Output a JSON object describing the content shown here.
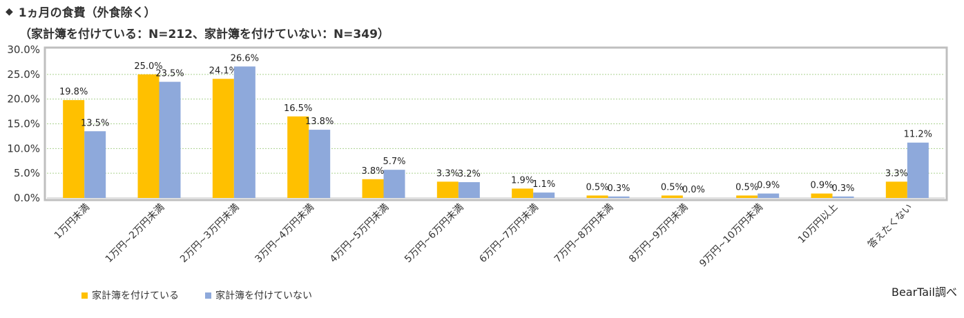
{
  "title": {
    "line1": "1ヵ月の食費（外食除く）",
    "line2": "（家計簿を付けている：N=212、家計簿を付けていない：N=349）",
    "bullet_icon": "diamond-bullet-icon"
  },
  "credit": "BearTail調べ",
  "colors": {
    "series1": "#FFC000",
    "series2": "#8EA9DB",
    "grid": "#A9D18E",
    "frame": "#BFBFBF"
  },
  "chart_data": {
    "type": "bar",
    "categories": [
      "1万円未満",
      "1万円~2万円未満",
      "2万円~3万円未満",
      "3万円~4万円未満",
      "4万円~5万円未満",
      "5万円~6万円未満",
      "6万円~7万円未満",
      "7万円~8万円未満",
      "8万円~9万円未満",
      "9万円~10万円未満",
      "10万円以上",
      "答えたくない"
    ],
    "series": [
      {
        "name": "家計簿を付けている",
        "values": [
          19.8,
          25.0,
          24.1,
          16.5,
          3.8,
          3.3,
          1.9,
          0.5,
          0.5,
          0.5,
          0.9,
          3.3
        ],
        "labels": [
          "19.8%",
          "25.0%",
          "24.1%",
          "16.5%",
          "3.8%",
          "3.3%",
          "1.9%",
          "0.5%",
          "0.5%",
          "0.5%",
          "0.9%",
          "3.3%"
        ]
      },
      {
        "name": "家計簿を付けていない",
        "values": [
          13.5,
          23.5,
          26.6,
          13.8,
          5.7,
          3.2,
          1.1,
          0.3,
          0.0,
          0.9,
          0.3,
          11.2
        ],
        "labels": [
          "13.5%",
          "23.5%",
          "26.6%",
          "13.8%",
          "5.7%",
          "3.2%",
          "1.1%",
          "0.3%",
          "0.0%",
          "0.9%",
          "0.3%",
          "11.2%"
        ]
      }
    ],
    "ylim": [
      0,
      30
    ],
    "yticks": [
      "0.0%",
      "5.0%",
      "10.0%",
      "15.0%",
      "20.0%",
      "25.0%",
      "30.0%"
    ],
    "grid": true,
    "legend_position": "bottom-left"
  }
}
